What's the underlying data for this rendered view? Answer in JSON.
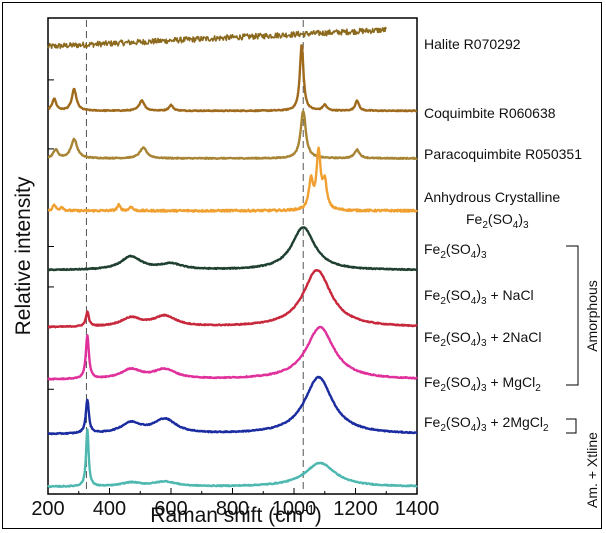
{
  "chart_data": {
    "type": "line",
    "title": "",
    "xlabel_main": "Raman shift (cm",
    "xlabel_sup": "-1",
    "xlabel_close": ")",
    "ylabel": "Relative intensity",
    "xlim": [
      200,
      1400
    ],
    "x_ticks": [
      "200",
      "400",
      "600",
      "800",
      "1000",
      "1200",
      "1400"
    ],
    "x_tick_values": [
      200,
      400,
      600,
      800,
      1000,
      1200,
      1400
    ],
    "reference_lines": [
      325,
      1030
    ],
    "groups": [
      {
        "label": "Amorphous",
        "series_range": [
          4,
          7
        ]
      },
      {
        "label": "Am. + Xtline",
        "series_range": [
          8,
          8
        ]
      }
    ],
    "series": [
      {
        "id": "halite",
        "name": "Halite R070292",
        "color": "#8B6A1E",
        "x_range": [
          200,
          1300
        ],
        "base": 0.06,
        "slope": 0.035,
        "noise": 0.006,
        "peaks": []
      },
      {
        "id": "coquimbite",
        "name": "Coquimbite R060638",
        "color": "#A06A1C",
        "x_range": [
          200,
          1400
        ],
        "base": 0.195,
        "noise": 0.001,
        "peaks": [
          {
            "x": 220,
            "h": 0.025,
            "w": 8
          },
          {
            "x": 285,
            "h": 0.045,
            "w": 9
          },
          {
            "x": 505,
            "h": 0.022,
            "w": 10
          },
          {
            "x": 600,
            "h": 0.012,
            "w": 8
          },
          {
            "x": 1025,
            "h": 0.14,
            "w": 7
          },
          {
            "x": 1100,
            "h": 0.012,
            "w": 8
          },
          {
            "x": 1205,
            "h": 0.022,
            "w": 7
          }
        ]
      },
      {
        "id": "paracoquimbite",
        "name": "Paracoquimbite R050351",
        "color": "#A88435",
        "x_range": [
          200,
          1400
        ],
        "base": 0.295,
        "noise": 0.001,
        "peaks": [
          {
            "x": 225,
            "h": 0.018,
            "w": 9
          },
          {
            "x": 285,
            "h": 0.04,
            "w": 12
          },
          {
            "x": 510,
            "h": 0.022,
            "w": 14
          },
          {
            "x": 1030,
            "h": 0.1,
            "w": 10
          },
          {
            "x": 1205,
            "h": 0.018,
            "w": 10
          }
        ]
      },
      {
        "id": "anhydrous",
        "name": "Anhydrous Crystalline Fe2(SO4)3",
        "color": "#F0A030",
        "x_range": [
          200,
          1400
        ],
        "base": 0.405,
        "noise": 0.002,
        "peaks": [
          {
            "x": 220,
            "h": 0.012,
            "w": 6
          },
          {
            "x": 245,
            "h": 0.008,
            "w": 6
          },
          {
            "x": 430,
            "h": 0.012,
            "w": 6
          },
          {
            "x": 470,
            "h": 0.009,
            "w": 6
          },
          {
            "x": 1055,
            "h": 0.06,
            "w": 8
          },
          {
            "x": 1080,
            "h": 0.12,
            "w": 8
          },
          {
            "x": 1100,
            "h": 0.055,
            "w": 8
          }
        ]
      },
      {
        "id": "fe2so43",
        "name": "Fe2(SO4)3",
        "color": "#1F4030",
        "x_range": [
          200,
          1400
        ],
        "base": 0.53,
        "noise": 0.001,
        "peaks": [
          {
            "x": 470,
            "h": 0.028,
            "w": 40
          },
          {
            "x": 600,
            "h": 0.012,
            "w": 45
          },
          {
            "x": 1030,
            "h": 0.09,
            "w": 45
          }
        ]
      },
      {
        "id": "nacl",
        "name": "Fe2(SO4)3 + NaCl",
        "color": "#C8283C",
        "x_range": [
          200,
          1400
        ],
        "base": 0.65,
        "noise": 0.001,
        "peaks": [
          {
            "x": 328,
            "h": 0.03,
            "w": 6
          },
          {
            "x": 470,
            "h": 0.018,
            "w": 40
          },
          {
            "x": 580,
            "h": 0.022,
            "w": 45
          },
          {
            "x": 1075,
            "h": 0.12,
            "w": 55
          }
        ]
      },
      {
        "id": "2nacl",
        "name": "Fe2(SO4)3 + 2NaCl",
        "color": "#E0309C",
        "x_range": [
          200,
          1400
        ],
        "base": 0.76,
        "noise": 0.001,
        "peaks": [
          {
            "x": 328,
            "h": 0.09,
            "w": 6
          },
          {
            "x": 470,
            "h": 0.02,
            "w": 40
          },
          {
            "x": 580,
            "h": 0.02,
            "w": 45
          },
          {
            "x": 1085,
            "h": 0.11,
            "w": 55
          }
        ]
      },
      {
        "id": "mgcl2",
        "name": "Fe2(SO4)3 + MgCl2",
        "color": "#1A2CA0",
        "x_range": [
          200,
          1400
        ],
        "base": 0.875,
        "noise": 0.001,
        "peaks": [
          {
            "x": 328,
            "h": 0.07,
            "w": 6
          },
          {
            "x": 470,
            "h": 0.022,
            "w": 40
          },
          {
            "x": 580,
            "h": 0.03,
            "w": 45
          },
          {
            "x": 1080,
            "h": 0.12,
            "w": 55
          }
        ]
      },
      {
        "id": "2mgcl2",
        "name": "Fe2(SO4)3 + 2MgCl2",
        "color": "#4EB8B0",
        "x_range": [
          200,
          1400
        ],
        "base": 0.985,
        "noise": 0.001,
        "peaks": [
          {
            "x": 328,
            "h": 0.12,
            "w": 5
          },
          {
            "x": 470,
            "h": 0.008,
            "w": 40
          },
          {
            "x": 580,
            "h": 0.01,
            "w": 45
          },
          {
            "x": 1085,
            "h": 0.05,
            "w": 60
          }
        ]
      }
    ]
  }
}
